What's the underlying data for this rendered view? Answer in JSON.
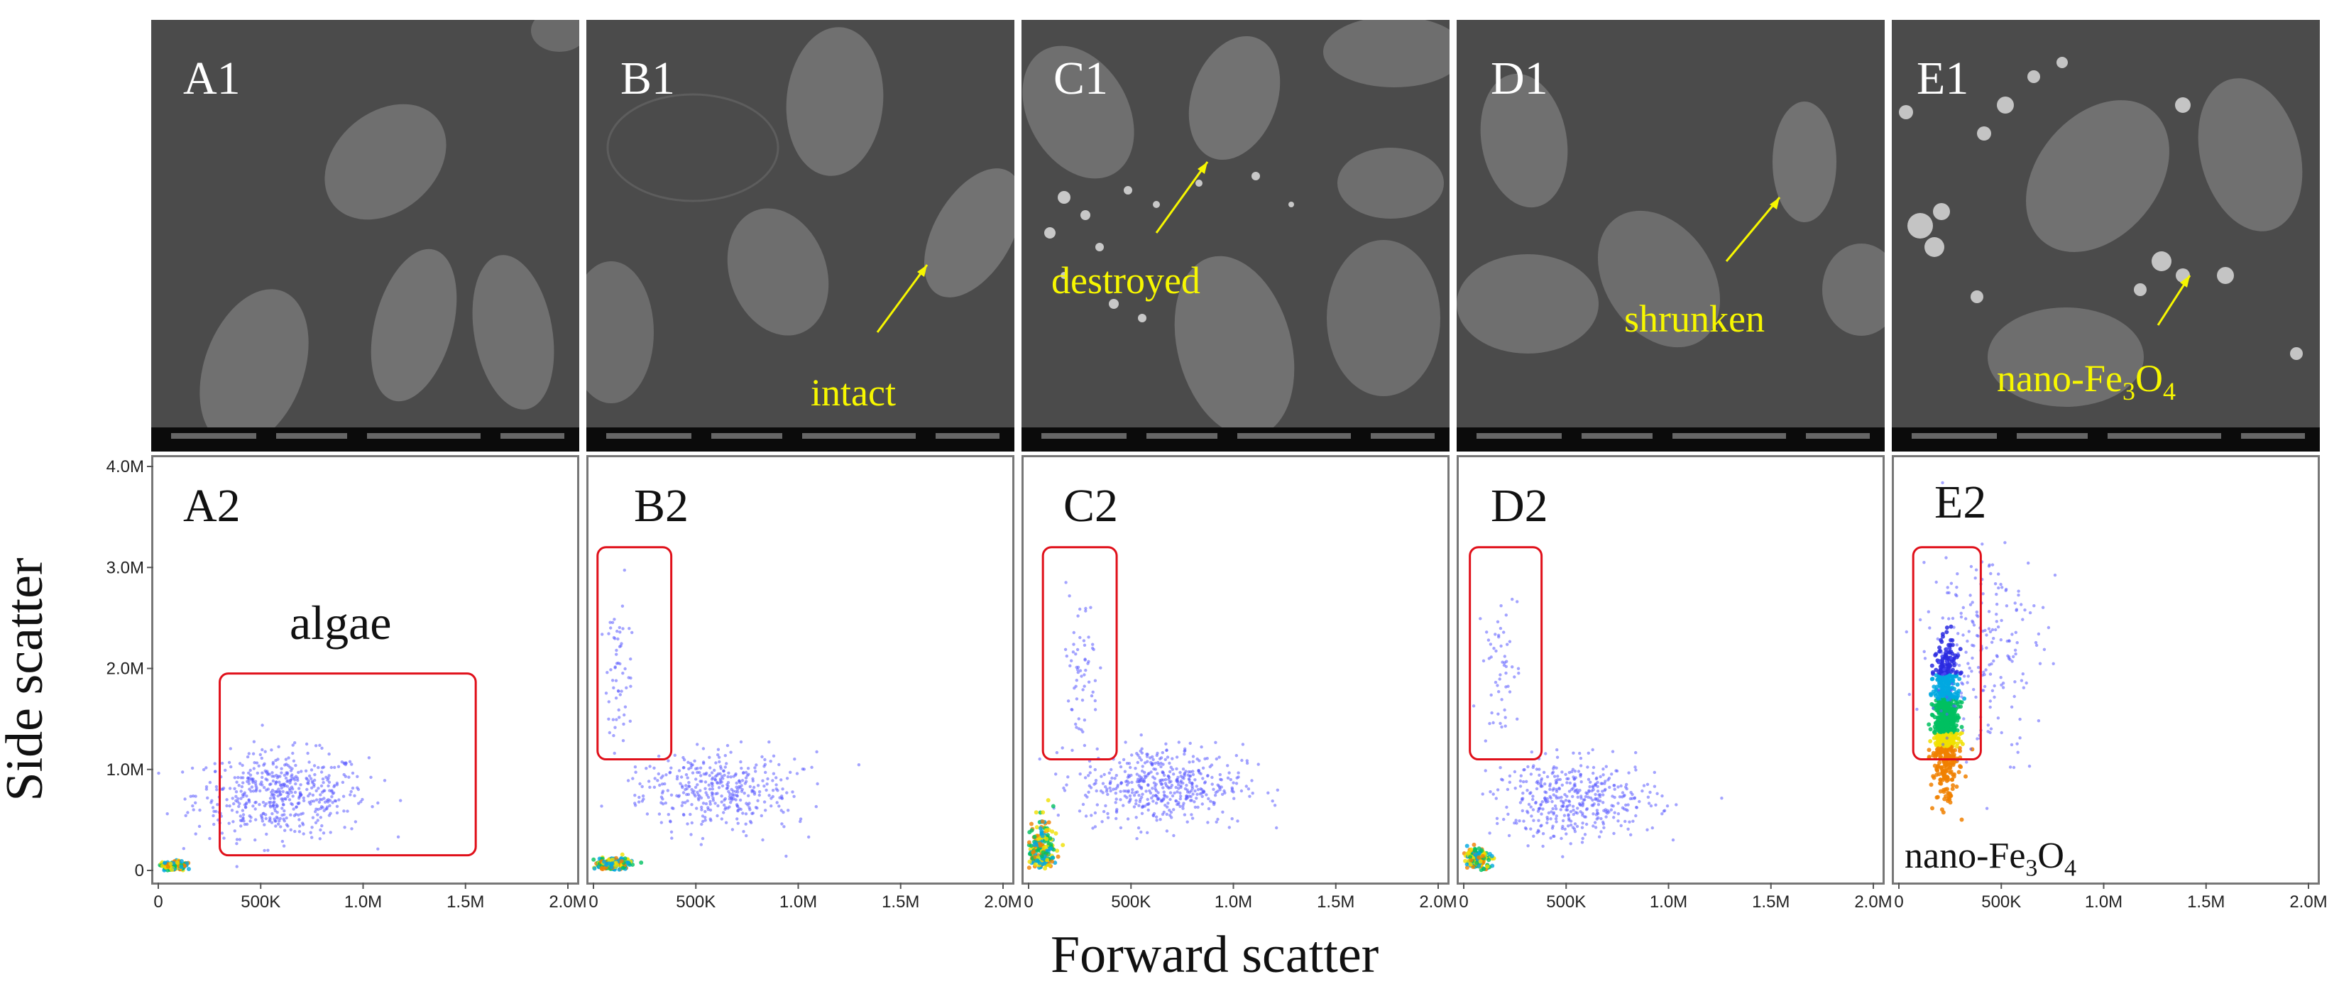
{
  "sem_panels": [
    {
      "label": "A1",
      "annotation": ""
    },
    {
      "label": "B1",
      "annotation": "intact"
    },
    {
      "label": "C1",
      "annotation": "destroyed"
    },
    {
      "label": "D1",
      "annotation": "shrunken"
    },
    {
      "label": "E1",
      "annotation_main": "nano-Fe",
      "annotation_sub1": "3",
      "annotation_mid": "O",
      "annotation_sub2": "4"
    }
  ],
  "scatter_panels": [
    {
      "label": "A2",
      "gate_label": "algae"
    },
    {
      "label": "B2"
    },
    {
      "label": "C2"
    },
    {
      "label": "D2"
    },
    {
      "label": "E2",
      "bottom_label_main": "nano-Fe",
      "bottom_label_sub1": "3",
      "bottom_label_mid": "O",
      "bottom_label_sub2": "4"
    }
  ],
  "axes": {
    "ylabel": "Side scatter",
    "xlabel": "Forward scatter"
  },
  "colors": {
    "annotation": "#f7f700",
    "gate": "#e0101a",
    "points": "#5a5aff",
    "dense_points": [
      "#2a2ae0",
      "#00a8e0",
      "#00c060",
      "#f0e000",
      "#f08000"
    ]
  },
  "chart_data": [
    {
      "type": "scatter",
      "panel": "A2",
      "xlabel": "",
      "ylabel": "Side scatter",
      "xlim": [
        0,
        2000000
      ],
      "ylim": [
        0,
        4000000
      ],
      "x_ticks": [
        "0",
        "500K",
        "1.0M",
        "1.5M",
        "2.0M"
      ],
      "y_ticks": [
        "0",
        "1.0M",
        "2.0M",
        "3.0M",
        "4.0M"
      ],
      "gate": {
        "x": [
          300000,
          1550000
        ],
        "y": [
          150000,
          1950000
        ],
        "label": "algae"
      },
      "clusters": [
        {
          "center": [
            600000,
            750000
          ],
          "spread": [
            350000,
            350000
          ],
          "n": 520
        },
        {
          "center": [
            80000,
            40000
          ],
          "spread": [
            60000,
            40000
          ],
          "n": 160
        }
      ]
    },
    {
      "type": "scatter",
      "panel": "B2",
      "xlabel": "",
      "ylabel": "",
      "xlim": [
        0,
        2000000
      ],
      "ylim": [
        0,
        4000000
      ],
      "x_ticks": [
        "0",
        "500K",
        "1.0M",
        "1.5M",
        "2.0M"
      ],
      "y_ticks": [],
      "gate": {
        "x": [
          20000,
          380000
        ],
        "y": [
          1100000,
          3200000
        ],
        "label": ""
      },
      "clusters": [
        {
          "center": [
            600000,
            800000
          ],
          "spread": [
            330000,
            330000
          ],
          "n": 380
        },
        {
          "center": [
            120000,
            2000000
          ],
          "spread": [
            60000,
            700000
          ],
          "n": 60
        },
        {
          "center": [
            90000,
            60000
          ],
          "spread": [
            70000,
            50000
          ],
          "n": 200
        }
      ]
    },
    {
      "type": "scatter",
      "panel": "C2",
      "xlabel": "",
      "ylabel": "",
      "xlim": [
        0,
        2000000
      ],
      "ylim": [
        0,
        4000000
      ],
      "x_ticks": [
        "0",
        "500K",
        "1.0M",
        "1.5M",
        "2.0M"
      ],
      "y_ticks": [],
      "gate": {
        "x": [
          70000,
          430000
        ],
        "y": [
          1100000,
          3200000
        ],
        "label": ""
      },
      "clusters": [
        {
          "center": [
            650000,
            850000
          ],
          "spread": [
            330000,
            330000
          ],
          "n": 480
        },
        {
          "center": [
            250000,
            2000000
          ],
          "spread": [
            80000,
            650000
          ],
          "n": 60
        },
        {
          "center": [
            60000,
            200000
          ],
          "spread": [
            50000,
            250000
          ],
          "n": 240
        }
      ]
    },
    {
      "type": "scatter",
      "panel": "D2",
      "xlabel": "Forward scatter",
      "ylabel": "",
      "xlim": [
        0,
        2000000
      ],
      "ylim": [
        0,
        4000000
      ],
      "x_ticks": [
        "0",
        "500K",
        "1.0M",
        "1.5M",
        "2.0M"
      ],
      "y_ticks": [],
      "gate": {
        "x": [
          30000,
          380000
        ],
        "y": [
          1100000,
          3200000
        ],
        "label": ""
      },
      "clusters": [
        {
          "center": [
            550000,
            700000
          ],
          "spread": [
            330000,
            320000
          ],
          "n": 420
        },
        {
          "center": [
            180000,
            2000000
          ],
          "spread": [
            70000,
            650000
          ],
          "n": 55
        },
        {
          "center": [
            70000,
            120000
          ],
          "spread": [
            50000,
            90000
          ],
          "n": 200
        }
      ]
    },
    {
      "type": "scatter",
      "panel": "E2",
      "xlabel": "",
      "ylabel": "",
      "xlim": [
        0,
        2000000
      ],
      "ylim": [
        0,
        4000000
      ],
      "x_ticks": [
        "0",
        "500K",
        "1.0M",
        "1.5M",
        "2.0M"
      ],
      "y_ticks": [],
      "gate": {
        "x": [
          70000,
          400000
        ],
        "y": [
          1100000,
          3200000
        ],
        "label": ""
      },
      "clusters": [
        {
          "center": [
            230000,
            1500000
          ],
          "spread": [
            50000,
            550000
          ],
          "n": 900,
          "dense": true
        },
        {
          "center": [
            400000,
            2200000
          ],
          "spread": [
            250000,
            900000
          ],
          "n": 220
        }
      ]
    }
  ]
}
